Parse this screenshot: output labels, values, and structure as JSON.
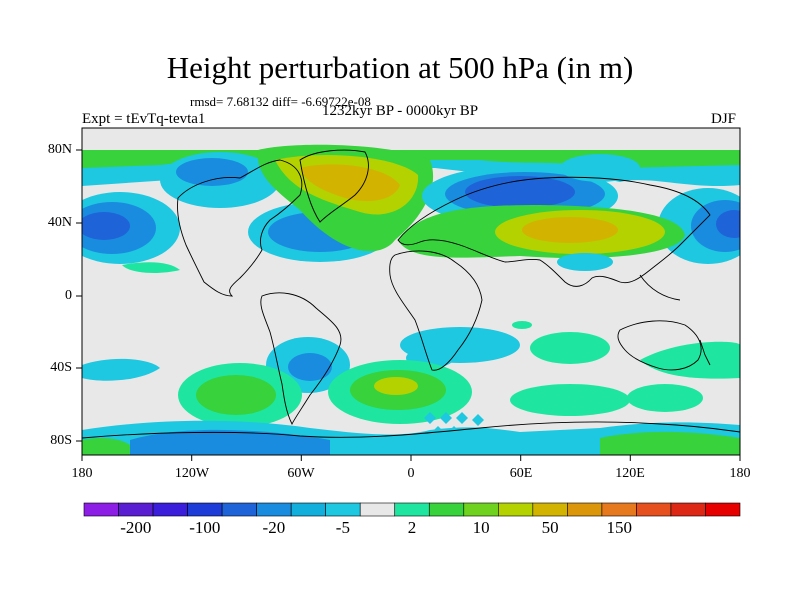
{
  "title": "Height perturbation at 500 hPa (in m)",
  "stats": "rmsd= 7.68132 diff= -6.69722e-08",
  "left_label": "Expt = tEvTq-tevta1",
  "center_label": "1232kyr BP - 0000kyr BP",
  "right_label": "DJF",
  "x_ticks": [
    "180",
    "120W",
    "60W",
    "0",
    "60E",
    "120E",
    "180"
  ],
  "y_ticks": [
    "80N",
    "40N",
    "0",
    "40S",
    "80S"
  ],
  "colorbar": {
    "colors": [
      "#8c1ee6",
      "#5a1ed2",
      "#3a1edc",
      "#1e3cd8",
      "#1e64d8",
      "#1a8ce0",
      "#12aedc",
      "#1ec8e0",
      "#e8e8e8",
      "#1ee6a0",
      "#37d23c",
      "#6ed21e",
      "#b4d200",
      "#d2b400",
      "#dc960a",
      "#e6781e",
      "#e6501e",
      "#dc2814",
      "#e60000"
    ],
    "labels": [
      "-200",
      "-100",
      "-20",
      "-5",
      "2",
      "10",
      "50",
      "150"
    ]
  }
}
